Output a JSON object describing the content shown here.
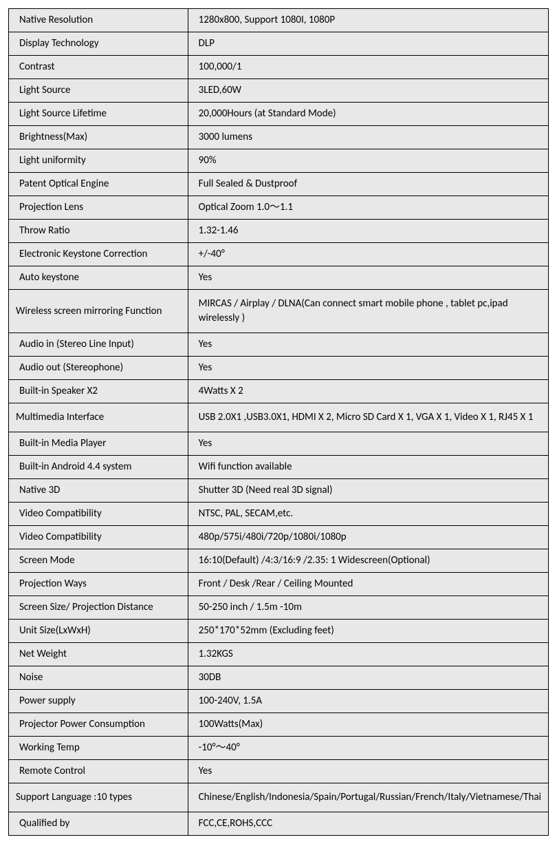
{
  "table": {
    "background_color": "#e8e8e8",
    "border_color": "#000000",
    "text_color": "#000000",
    "font_size": 15,
    "label_width": 300,
    "total_width": 786,
    "rows": [
      {
        "label": "Native Resolution",
        "value": "1280x800, Support 1080I, 1080P",
        "tall": false
      },
      {
        "label": "Display Technology",
        "value": "DLP",
        "tall": false
      },
      {
        "label": "Contrast",
        "value": "100,000/1",
        "tall": false
      },
      {
        "label": "Light Source",
        "value": "3LED,60W",
        "tall": false
      },
      {
        "label": "Light Source Lifetime",
        "value": "20,000Hours (at Standard Mode)",
        "tall": false
      },
      {
        "label": "Brightness(Max)",
        "value": "3000 lumens",
        "tall": false
      },
      {
        "label": "Light uniformity",
        "value": "90%",
        "tall": false
      },
      {
        "label": "Patent Optical Engine",
        "value": "Full Sealed & Dustproof",
        "tall": false
      },
      {
        "label": "Projection Lens",
        "value": "Optical Zoom 1.0～1.1",
        "tall": false
      },
      {
        "label": "Throw Ratio",
        "value": "1.32-1.46",
        "tall": false
      },
      {
        "label": "Electronic Keystone Correction",
        "value": "+/-40°",
        "tall": false
      },
      {
        "label": "Auto keystone",
        "value": "Yes",
        "tall": false
      },
      {
        "label": "Wireless screen mirroring Function",
        "value": "MIRCAS / Airplay / DLNA(Can connect smart mobile phone , tablet pc,ipad wirelessly )",
        "tall": true
      },
      {
        "label": "Audio in (Stereo Line Input)",
        "value": "Yes",
        "tall": false
      },
      {
        "label": "Audio out (Stereophone)",
        "value": "Yes",
        "tall": false
      },
      {
        "label": "Built-in Speaker  X2",
        "value": "4Watts X 2",
        "tall": false
      },
      {
        "label": "Multimedia Interface",
        "value": "USB 2.0X1 ,USB3.0X1, HDMI X 2,  Micro SD Card X 1,  VGA X 1,  Video X 1, RJ45 X 1",
        "tall": true
      },
      {
        "label": "Built-in Media Player",
        "value": "Yes",
        "tall": false
      },
      {
        "label": "Built-in Android 4.4 system",
        "value": "Wifi function available",
        "tall": false
      },
      {
        "label": "Native 3D",
        "value": "Shutter 3D (Need real 3D signal)",
        "tall": false
      },
      {
        "label": "Video Compatibility",
        "value": "NTSC, PAL, SECAM,etc.",
        "tall": false
      },
      {
        "label": "Video Compatibility",
        "value": "480p/575i/480i/720p/1080i/1080p",
        "tall": false
      },
      {
        "label": "Screen Mode",
        "value": "16:10(Default) /4:3/16:9 /2.35: 1 Widescreen(Optional)",
        "tall": false
      },
      {
        "label": "Projection Ways",
        "value": "Front / Desk /Rear  / Ceiling Mounted",
        "tall": false
      },
      {
        "label": "Screen Size/ Projection Distance",
        "value": "50-250 inch / 1.5m -10m",
        "tall": false
      },
      {
        "label": "Unit Size(LxWxH)",
        "value": "250*170*52mm  (Excluding feet)",
        "tall": false
      },
      {
        "label": "Net Weight",
        "value": "1.32KGS",
        "tall": false
      },
      {
        "label": "Noise",
        "value": "30DB",
        "tall": false
      },
      {
        "label": "Power supply",
        "value": "100-240V, 1.5A",
        "tall": false
      },
      {
        "label": "Projector Power Consumption",
        "value": "100Watts(Max)",
        "tall": false
      },
      {
        "label": "Working Temp",
        "value": "-10°～40°",
        "tall": false
      },
      {
        "label": "Remote Control",
        "value": "Yes",
        "tall": false
      },
      {
        "label": "Support Language :10 types",
        "value": "Chinese/English/Indonesia/Spain/Portugal/Russian/French/Italy/Vietnamese/Thai",
        "tall": true
      },
      {
        "label": "Qualified by",
        "value": "FCC,CE,ROHS,CCC",
        "tall": false
      }
    ]
  }
}
